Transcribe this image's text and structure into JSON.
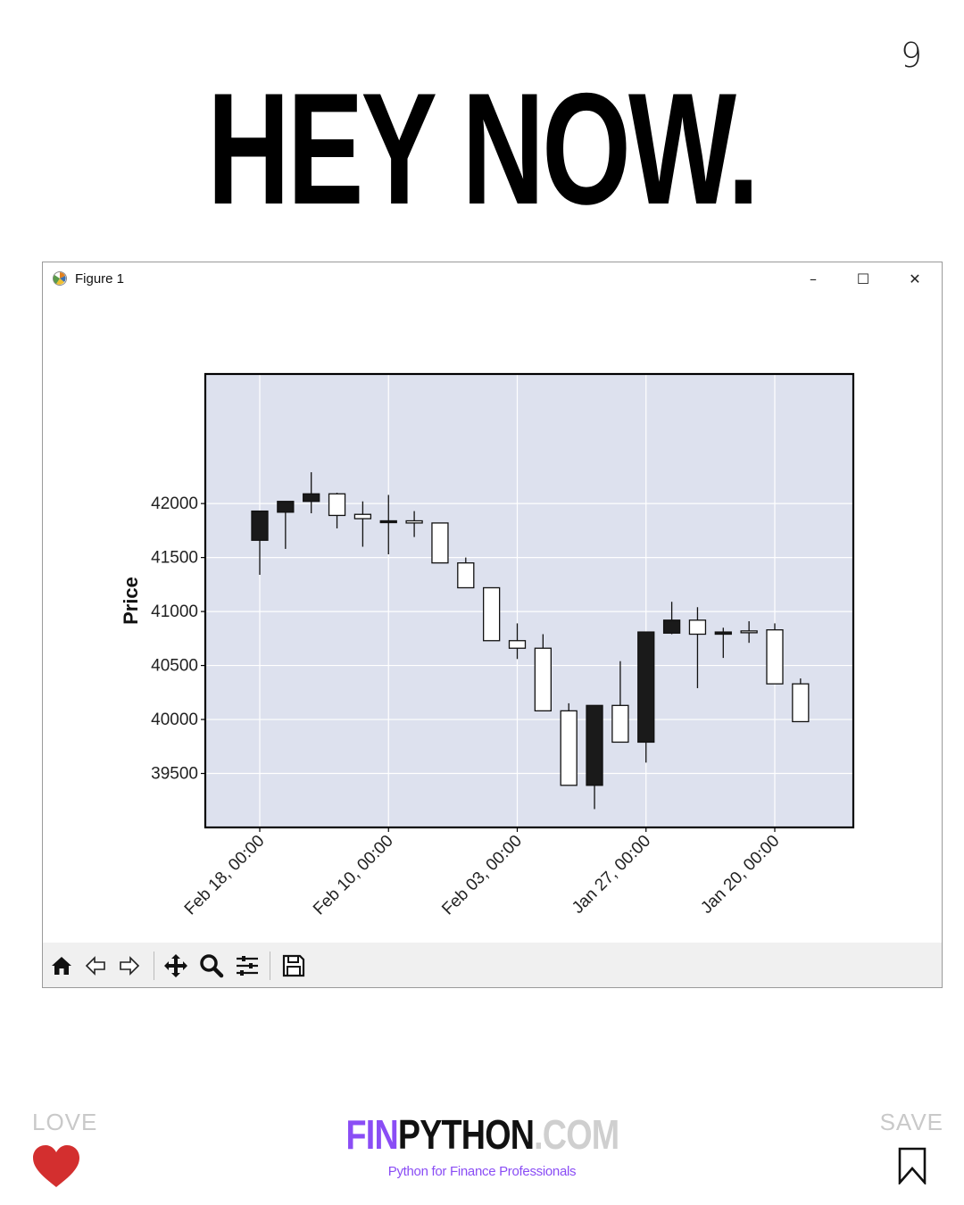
{
  "page_number": "9",
  "headline": "HEY NOW.",
  "window": {
    "title": "Figure 1",
    "controls": {
      "minimize": "–",
      "maximize": "☐",
      "close": "✕"
    }
  },
  "toolbar": {
    "buttons": [
      "home-icon",
      "back-icon",
      "forward-icon",
      "pan-icon",
      "zoom-icon",
      "configure-icon",
      "save-icon"
    ]
  },
  "chart_data": {
    "type": "candlestick",
    "title": "",
    "xlabel": "",
    "ylabel": "Price",
    "ylim": [
      39000,
      43200
    ],
    "yticks": [
      39500,
      40000,
      40500,
      41000,
      41500,
      42000
    ],
    "x_tick_labels": [
      "Feb 18, 00:00",
      "Feb 10, 00:00",
      "Feb 03, 00:00",
      "Jan 27, 00:00",
      "Jan 20, 00:00"
    ],
    "x_tick_positions": [
      0,
      5,
      10,
      15,
      20
    ],
    "grid": true,
    "facecolor": "#dde1ee",
    "up_color": "#ffffff",
    "down_color": "#1a1a1a",
    "candles": [
      {
        "open": 41930,
        "close": 41660,
        "high": 41930,
        "low": 41340
      },
      {
        "open": 42020,
        "close": 41920,
        "high": 42020,
        "low": 41580
      },
      {
        "open": 42090,
        "close": 42020,
        "high": 42290,
        "low": 41910
      },
      {
        "open": 41890,
        "close": 42090,
        "high": 42100,
        "low": 41770
      },
      {
        "open": 41860,
        "close": 41900,
        "high": 42020,
        "low": 41600
      },
      {
        "open": 41840,
        "close": 41830,
        "high": 42080,
        "low": 41530
      },
      {
        "open": 41820,
        "close": 41840,
        "high": 41930,
        "low": 41690
      },
      {
        "open": 41450,
        "close": 41820,
        "high": 41820,
        "low": 41450
      },
      {
        "open": 41220,
        "close": 41450,
        "high": 41500,
        "low": 41220
      },
      {
        "open": 40730,
        "close": 41220,
        "high": 41220,
        "low": 40730
      },
      {
        "open": 40660,
        "close": 40730,
        "high": 40890,
        "low": 40560
      },
      {
        "open": 40080,
        "close": 40660,
        "high": 40790,
        "low": 40080
      },
      {
        "open": 39390,
        "close": 40080,
        "high": 40150,
        "low": 39390
      },
      {
        "open": 40130,
        "close": 39390,
        "high": 40130,
        "low": 39170
      },
      {
        "open": 39790,
        "close": 40130,
        "high": 40540,
        "low": 39790
      },
      {
        "open": 40810,
        "close": 39790,
        "high": 40810,
        "low": 39600
      },
      {
        "open": 40920,
        "close": 40800,
        "high": 41090,
        "low": 40790
      },
      {
        "open": 40790,
        "close": 40920,
        "high": 41040,
        "low": 40290
      },
      {
        "open": 40810,
        "close": 40790,
        "high": 40850,
        "low": 40570
      },
      {
        "open": 40810,
        "close": 40820,
        "high": 40910,
        "low": 40710
      },
      {
        "open": 40330,
        "close": 40830,
        "high": 40890,
        "low": 40330
      },
      {
        "open": 39980,
        "close": 40330,
        "high": 40380,
        "low": 39980
      }
    ]
  },
  "footer": {
    "love_label": "LOVE",
    "save_label": "SAVE",
    "brand_part1": "FIN",
    "brand_part2": "PYTHON",
    "brand_part3": ".COM",
    "tagline": "Python for Finance Professionals",
    "heart_color": "#d32f2f",
    "brand_color": "#8a4df5"
  }
}
